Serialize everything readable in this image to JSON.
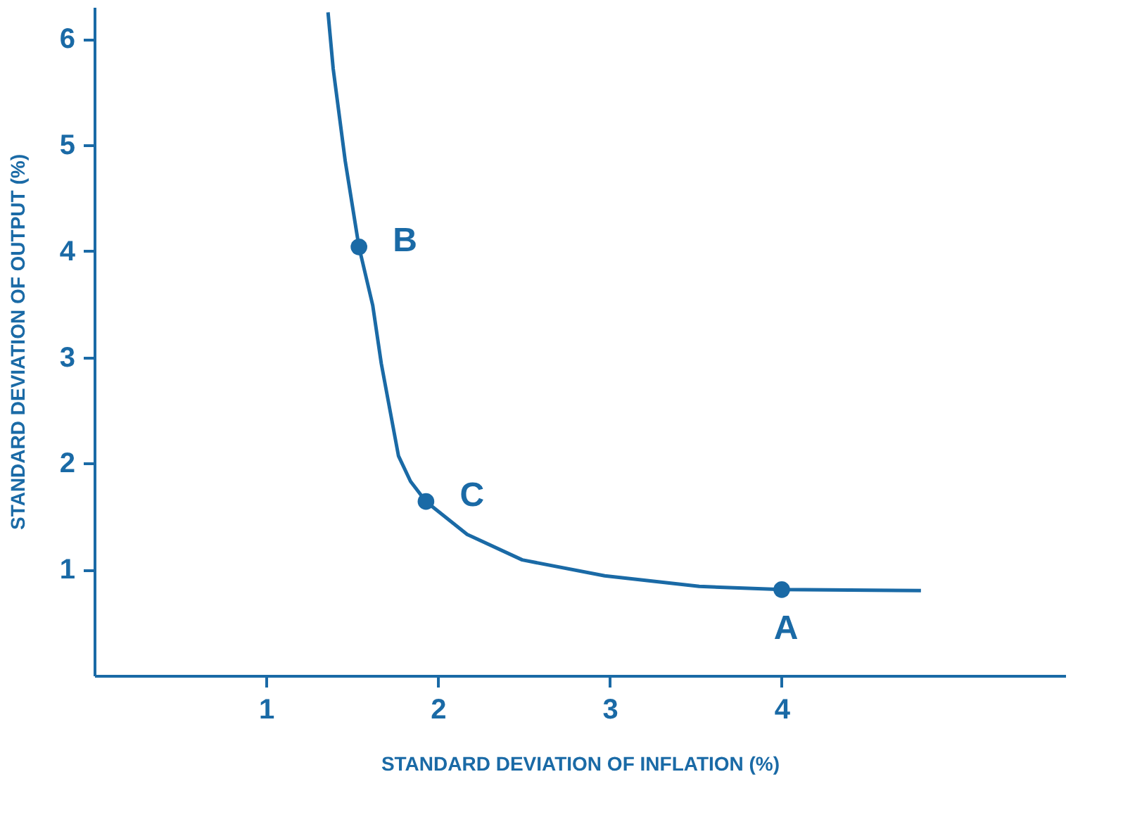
{
  "chart_data": {
    "type": "line",
    "xlabel": "STANDARD DEVIATION OF INFLATION (%)",
    "ylabel": "STANDARD DEVIATION OF OUTPUT (%)",
    "xlim": [
      0,
      5.65
    ],
    "ylim": [
      0,
      6.3
    ],
    "xticks": [
      1,
      2,
      3,
      4
    ],
    "yticks": [
      1,
      2,
      3,
      4,
      5,
      6
    ],
    "grid": false,
    "series": [
      {
        "color": "#1a6aa6",
        "marker": "none",
        "x": [
          1.36,
          1.39,
          1.46,
          1.54,
          1.62,
          1.67,
          1.77,
          1.84,
          1.93,
          2.17,
          2.49,
          2.97,
          3.52,
          4.0,
          4.81
        ],
        "values": [
          6.25,
          5.72,
          4.85,
          4.04,
          3.49,
          2.94,
          2.07,
          1.83,
          1.64,
          1.33,
          1.09,
          0.94,
          0.84,
          0.81,
          0.8
        ]
      },
      {
        "type": "scatter",
        "color": "#1a6aa6",
        "marker": "circle",
        "x": [
          1.54,
          1.93,
          4.0
        ],
        "values": [
          4.04,
          1.64,
          0.81
        ]
      }
    ],
    "annotations": [
      {
        "text": "B",
        "x": 1.54,
        "y": 4.04
      },
      {
        "text": "C",
        "x": 1.93,
        "y": 1.64
      },
      {
        "text": "A",
        "x": 4.0,
        "y": 0.81
      }
    ]
  }
}
